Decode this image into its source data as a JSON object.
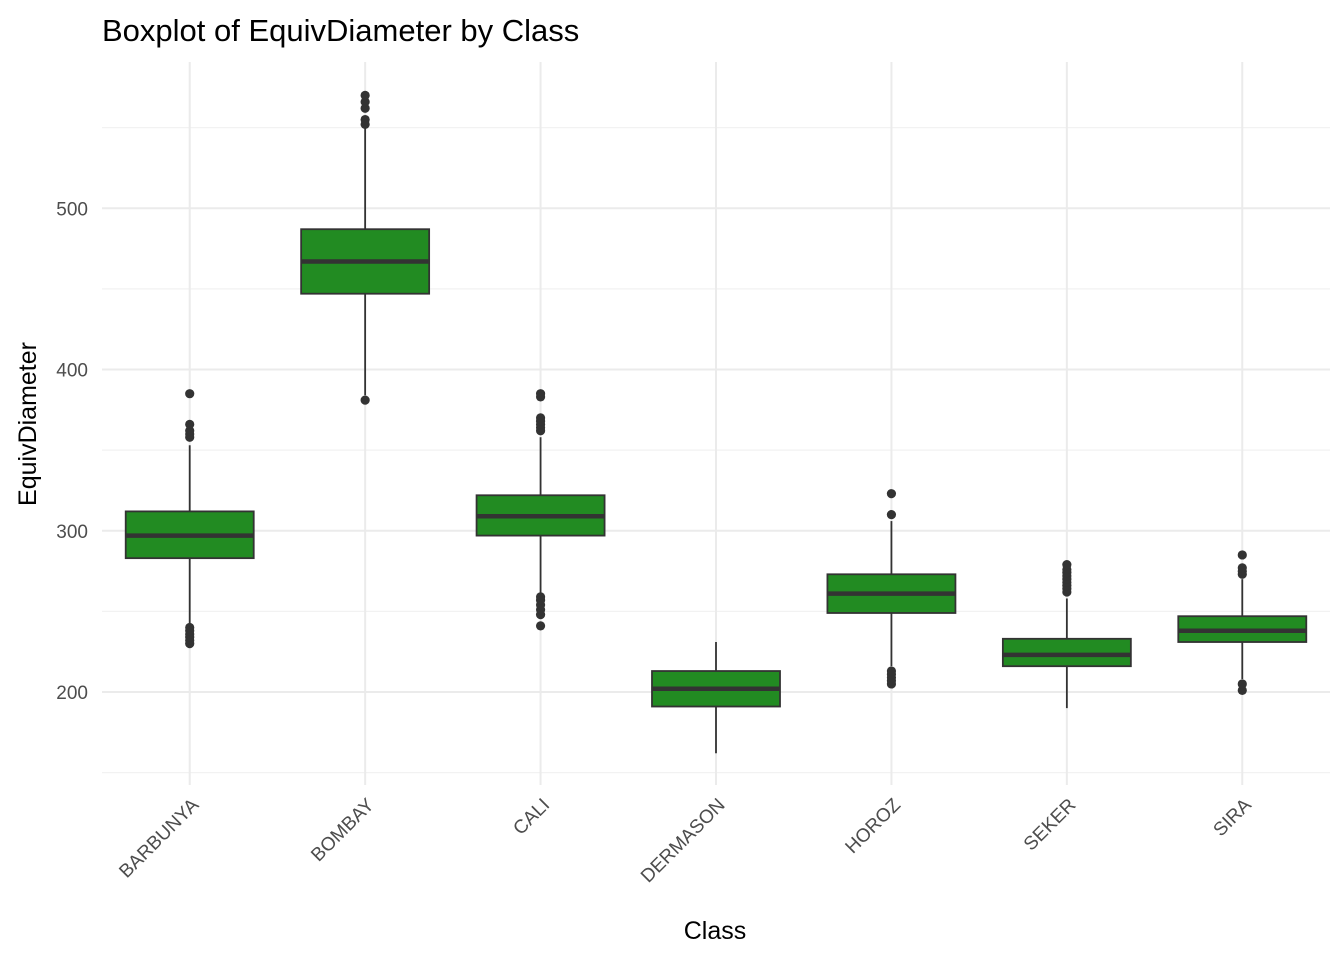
{
  "chart_data": {
    "type": "boxplot",
    "title": "Boxplot of EquivDiameter by Class",
    "xlabel": "Class",
    "ylabel": "EquivDiameter",
    "ylim": [
      145,
      588
    ],
    "yticks": [
      200,
      300,
      400,
      500
    ],
    "grid": true,
    "box_color": "#228B22",
    "line_color": "#333333",
    "categories": [
      "BARBUNYA",
      "BOMBAY",
      "CALI",
      "DERMASON",
      "HOROZ",
      "SEKER",
      "SIRA"
    ],
    "boxes": [
      {
        "category": "BARBUNYA",
        "whisker_low": 242,
        "q1": 283,
        "median": 297,
        "q3": 312,
        "whisker_high": 353,
        "outliers": [
          230,
          232,
          234,
          236,
          238,
          240,
          358,
          360,
          362,
          366,
          385
        ]
      },
      {
        "category": "BOMBAY",
        "whisker_low": 384,
        "q1": 447,
        "median": 467,
        "q3": 487,
        "whisker_high": 550,
        "outliers": [
          381,
          552,
          555,
          562,
          566,
          570
        ]
      },
      {
        "category": "CALI",
        "whisker_low": 261,
        "q1": 297,
        "median": 309,
        "q3": 322,
        "whisker_high": 358,
        "outliers": [
          241,
          248,
          251,
          254,
          257,
          259,
          362,
          364,
          366,
          368,
          370,
          383,
          385
        ]
      },
      {
        "category": "DERMASON",
        "whisker_low": 162,
        "q1": 191,
        "median": 202,
        "q3": 213,
        "whisker_high": 231,
        "outliers": []
      },
      {
        "category": "HOROZ",
        "whisker_low": 216,
        "q1": 249,
        "median": 261,
        "q3": 273,
        "whisker_high": 306,
        "outliers": [
          205,
          207,
          209,
          211,
          213,
          310,
          323
        ]
      },
      {
        "category": "SEKER",
        "whisker_low": 190,
        "q1": 216,
        "median": 223,
        "q3": 233,
        "whisker_high": 258,
        "outliers": [
          262,
          264,
          266,
          268,
          270,
          272,
          274,
          276,
          279
        ]
      },
      {
        "category": "SIRA",
        "whisker_low": 208,
        "q1": 231,
        "median": 238,
        "q3": 247,
        "whisker_high": 270,
        "outliers": [
          201,
          205,
          273,
          275,
          277,
          285
        ]
      }
    ]
  }
}
